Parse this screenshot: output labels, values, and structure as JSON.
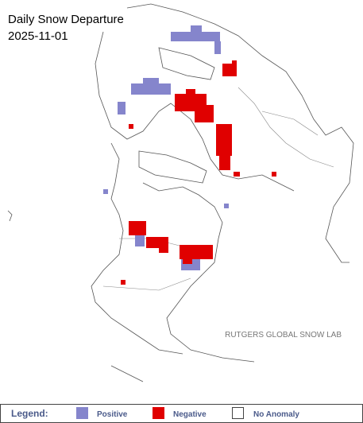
{
  "title": "Daily Snow Departure",
  "date": "2025-11-01",
  "credit": "RUTGERS GLOBAL SNOW LAB",
  "legend": {
    "title": "Legend:",
    "items": [
      {
        "label": "Positive"
      },
      {
        "label": "Negative"
      },
      {
        "label": "No Anomaly"
      }
    ]
  }
}
